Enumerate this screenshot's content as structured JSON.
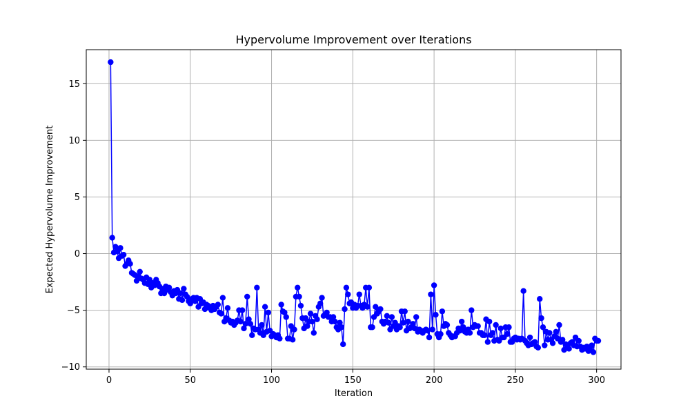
{
  "chart_data": {
    "type": "line",
    "title": "Hypervolume Improvement over Iterations",
    "xlabel": "Iteration",
    "ylabel": "Expected Hypervolume Improvement",
    "xlim": [
      -14,
      315
    ],
    "ylim": [
      -10.2,
      18
    ],
    "xticks": [
      0,
      50,
      100,
      150,
      200,
      250,
      300
    ],
    "yticks": [
      -10,
      -5,
      0,
      5,
      10,
      15
    ],
    "xtick_labels": [
      "0",
      "50",
      "100",
      "150",
      "200",
      "250",
      "300"
    ],
    "ytick_labels": [
      "−10",
      "−5",
      "0",
      "5",
      "10",
      "15"
    ],
    "grid": true,
    "marker": "circle",
    "color": "#0000ff",
    "series": [
      {
        "x_start": 1,
        "x_step": 1,
        "values": [
          16.9,
          1.4,
          0.1,
          0.6,
          0.2,
          -0.4,
          0.5,
          -0.2,
          -0.1,
          -1.1,
          -0.9,
          -0.6,
          -0.9,
          -1.7,
          -1.8,
          -1.9,
          -2.4,
          -2.0,
          -1.6,
          -2.2,
          -2.3,
          -2.6,
          -2.1,
          -2.7,
          -2.3,
          -3.0,
          -2.6,
          -2.8,
          -2.3,
          -2.6,
          -2.9,
          -3.5,
          -3.1,
          -3.5,
          -2.9,
          -3.2,
          -3.0,
          -3.4,
          -3.7,
          -3.3,
          -3.5,
          -3.2,
          -4.0,
          -3.5,
          -4.1,
          -3.1,
          -3.6,
          -3.8,
          -4.2,
          -4.4,
          -4.0,
          -3.9,
          -4.2,
          -3.9,
          -4.7,
          -4.0,
          -4.4,
          -4.3,
          -4.9,
          -4.5,
          -4.6,
          -4.8,
          -5.0,
          -4.6,
          -4.9,
          -4.7,
          -4.5,
          -5.2,
          -5.3,
          -3.9,
          -6.0,
          -5.7,
          -4.8,
          -5.9,
          -6.1,
          -6.0,
          -6.3,
          -6.1,
          -5.9,
          -5.0,
          -6.0,
          -5.0,
          -6.6,
          -6.2,
          -3.8,
          -5.8,
          -6.2,
          -7.2,
          -6.6,
          -6.7,
          -3.0,
          -6.7,
          -7.0,
          -6.3,
          -7.2,
          -4.7,
          -6.9,
          -5.2,
          -6.8,
          -7.3,
          -7.1,
          -7.2,
          -7.4,
          -7.2,
          -7.5,
          -4.5,
          -5.1,
          -5.2,
          -5.6,
          -7.5,
          -7.5,
          -6.4,
          -7.6,
          -6.7,
          -3.8,
          -3.0,
          -3.8,
          -4.6,
          -5.7,
          -6.6,
          -5.7,
          -6.4,
          -6.0,
          -5.3,
          -6.0,
          -7.0,
          -5.5,
          -5.8,
          -4.7,
          -4.4,
          -3.9,
          -5.5,
          -5.4,
          -5.2,
          -5.6,
          -5.6,
          -6.0,
          -5.6,
          -6.0,
          -6.5,
          -6.7,
          -6.1,
          -6.5,
          -8.0,
          -4.9,
          -3.0,
          -3.6,
          -4.4,
          -4.3,
          -4.8,
          -4.5,
          -4.8,
          -4.6,
          -3.6,
          -4.6,
          -4.8,
          -4.5,
          -3.0,
          -4.7,
          -3.0,
          -6.5,
          -6.5,
          -5.6,
          -4.7,
          -5.3,
          -5.1,
          -4.9,
          -6.0,
          -6.2,
          -6.0,
          -5.5,
          -6.1,
          -6.7,
          -5.6,
          -6.4,
          -6.1,
          -6.7,
          -6.4,
          -6.5,
          -5.1,
          -6.1,
          -5.1,
          -6.8,
          -6.0,
          -6.6,
          -6.5,
          -6.2,
          -6.6,
          -5.6,
          -6.9,
          -6.7,
          -6.8,
          -7.0,
          -6.8,
          -6.7,
          -6.8,
          -7.4,
          -3.6,
          -6.7,
          -2.8,
          -5.4,
          -7.1,
          -7.4,
          -7.1,
          -5.1,
          -6.4,
          -6.2,
          -6.3,
          -7.0,
          -7.2,
          -7.4,
          -7.3,
          -7.3,
          -7.0,
          -6.6,
          -6.8,
          -6.0,
          -6.5,
          -6.9,
          -7.0,
          -6.7,
          -7.0,
          -5.0,
          -6.5,
          -6.3,
          -6.4,
          -6.4,
          -7.0,
          -7.0,
          -7.2,
          -7.2,
          -5.8,
          -7.8,
          -6.0,
          -7.2,
          -7.0,
          -7.7,
          -6.3,
          -7.6,
          -7.7,
          -6.6,
          -7.4,
          -7.4,
          -6.5,
          -7.1,
          -6.5,
          -7.8,
          -7.8,
          -7.5,
          -7.4,
          -7.6,
          -7.5,
          -7.6,
          -7.5,
          -3.3,
          -7.7,
          -7.9,
          -8.1,
          -7.4,
          -8.0,
          -7.9,
          -7.8,
          -8.2,
          -8.3,
          -4.0,
          -5.7,
          -6.5,
          -8.1,
          -6.9,
          -7.6,
          -7.0,
          -7.6,
          -7.9,
          -7.3,
          -6.9,
          -7.5,
          -6.3,
          -7.8,
          -7.6,
          -8.5,
          -8.0,
          -8.2,
          -8.4,
          -7.9,
          -7.8,
          -8.1,
          -7.4,
          -8.2,
          -7.7,
          -8.2,
          -8.5,
          -8.3,
          -8.4,
          -8.2,
          -8.6,
          -8.4,
          -8.1,
          -8.7,
          -7.5,
          -7.7,
          -7.7
        ]
      }
    ]
  }
}
